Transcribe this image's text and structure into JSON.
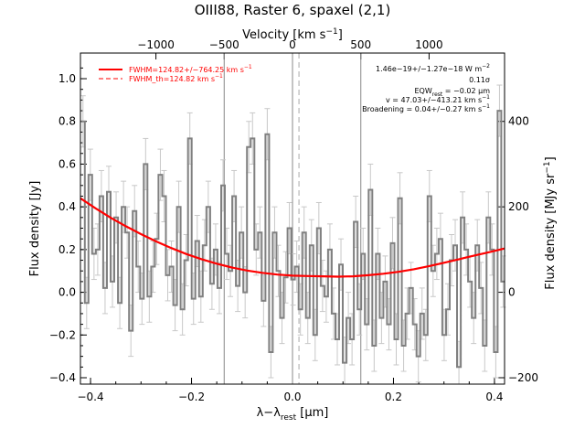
{
  "chart_data": {
    "type": "line",
    "title": "OIII88, Raster 6, spaxel (2,1)",
    "xlabel": "λ−λ",
    "xlabel_sub": "rest",
    "xlabel_unit": " [μm]",
    "ylabel": "Flux density [Jy]",
    "top_axis_label": "Velocity [km s",
    "top_axis_label_sup": "−1",
    "top_axis_label_end": "]",
    "right_axis_label": "Flux density [MJy sr",
    "right_axis_label_sup": "−1",
    "right_axis_label_end": "]",
    "xlim": [
      -0.42,
      0.42
    ],
    "ylim": [
      -0.43,
      1.12
    ],
    "x_ticks": [
      -0.4,
      -0.2,
      0.0,
      0.2,
      0.4
    ],
    "x_tick_labels": [
      "−0.4",
      "−0.2",
      "0.0",
      "0.2",
      "0.4"
    ],
    "y_ticks": [
      -0.4,
      -0.2,
      0.0,
      0.2,
      0.4,
      0.6,
      0.8,
      1.0
    ],
    "y_tick_labels": [
      "−0.4",
      "−0.2",
      "0.0",
      "0.2",
      "0.4",
      "0.6",
      "0.8",
      "1.0"
    ],
    "top_ticks_x": [
      -0.2705,
      -0.1353,
      0.0,
      0.1353,
      0.2705
    ],
    "top_tick_labels": [
      "−1000",
      "−500",
      "0",
      "500",
      "1000"
    ],
    "right_ticks_y": [
      -0.4,
      0.0,
      0.4,
      0.8
    ],
    "right_tick_labels": [
      "−200",
      "0",
      "200",
      "400"
    ],
    "vertical_lines_solid": [
      -0.1353,
      0.0,
      0.1353
    ],
    "vertical_line_dashed": 0.0128,
    "legend": {
      "placement": "top-left",
      "entries": [
        {
          "label": "FWHM=124.82+/−764.25 km s",
          "sup": "−1",
          "style": "solid",
          "color": "#ff0000"
        },
        {
          "label": "FWHM_th=124.82 km s",
          "sup": "−1",
          "style": "dashed",
          "color": "#ff0000"
        }
      ]
    },
    "annotations": [
      {
        "text": "1.46e−19+/−1.27e−18 W m",
        "sup": "−2"
      },
      {
        "text": "0.11σ"
      },
      {
        "text": "EQW",
        "sub": "rest",
        "text2": " = −0.02 μm"
      },
      {
        "text": "v = 47.03+/−413.21 km s",
        "sup": "−1"
      },
      {
        "text": "Broadening = 0.04+/−0.27 km s",
        "sup": "−1"
      }
    ],
    "series": [
      {
        "name": "spectrum",
        "style": "steps",
        "color": "#808080",
        "x": [
          -0.415,
          -0.4077,
          -0.4004,
          -0.3931,
          -0.3858,
          -0.3785,
          -0.3712,
          -0.3639,
          -0.3566,
          -0.3493,
          -0.342,
          -0.3347,
          -0.3274,
          -0.3201,
          -0.3128,
          -0.3055,
          -0.2982,
          -0.2909,
          -0.2836,
          -0.2763,
          -0.269,
          -0.2617,
          -0.2544,
          -0.2471,
          -0.2398,
          -0.2325,
          -0.2252,
          -0.2179,
          -0.2106,
          -0.2033,
          -0.196,
          -0.1887,
          -0.1814,
          -0.1741,
          -0.1668,
          -0.1595,
          -0.1522,
          -0.1449,
          -0.1376,
          -0.1303,
          -0.123,
          -0.1157,
          -0.1084,
          -0.1011,
          -0.0938,
          -0.0865,
          -0.0792,
          -0.0719,
          -0.0646,
          -0.0573,
          -0.05,
          -0.0427,
          -0.0354,
          -0.0281,
          -0.0208,
          -0.0135,
          -0.0062,
          0.0011,
          0.0084,
          0.0157,
          0.023,
          0.0303,
          0.0376,
          0.0449,
          0.0522,
          0.0595,
          0.0668,
          0.0741,
          0.0814,
          0.0887,
          0.096,
          0.1033,
          0.1106,
          0.1179,
          0.1252,
          0.1325,
          0.1398,
          0.1471,
          0.1544,
          0.1617,
          0.169,
          0.1763,
          0.1836,
          0.1909,
          0.1982,
          0.2055,
          0.2128,
          0.2201,
          0.2274,
          0.2347,
          0.242,
          0.2493,
          0.2566,
          0.2639,
          0.2712,
          0.2785,
          0.2858,
          0.2931,
          0.3004,
          0.3077,
          0.315,
          0.3223,
          0.3296,
          0.3369,
          0.3442,
          0.3515,
          0.3588,
          0.3661,
          0.3734,
          0.3807,
          0.388,
          0.3953,
          0.4026,
          0.4099,
          0.4172
        ],
        "y": [
          0.8,
          -0.05,
          0.55,
          0.18,
          0.2,
          0.45,
          0.02,
          0.47,
          0.05,
          0.35,
          -0.05,
          0.4,
          0.28,
          -0.18,
          0.38,
          0.12,
          -0.03,
          0.6,
          -0.02,
          0.12,
          0.25,
          0.55,
          0.45,
          0.08,
          0.12,
          -0.06,
          0.4,
          -0.08,
          0.15,
          0.72,
          -0.03,
          0.24,
          -0.02,
          0.22,
          0.4,
          0.04,
          0.2,
          0.02,
          0.5,
          0.18,
          0.1,
          0.45,
          0.03,
          0.28,
          0.0,
          0.68,
          0.72,
          0.2,
          0.28,
          -0.04,
          0.74,
          -0.28,
          0.28,
          0.1,
          -0.12,
          0.07,
          0.3,
          0.06,
          0.12,
          -0.08,
          0.28,
          -0.12,
          0.22,
          -0.2,
          0.3,
          0.03,
          -0.02,
          0.2,
          -0.1,
          -0.22,
          0.13,
          -0.33,
          -0.12,
          -0.22,
          0.33,
          -0.08,
          0.18,
          -0.15,
          0.48,
          -0.25,
          0.18,
          -0.12,
          0.05,
          -0.15,
          0.23,
          -0.22,
          0.44,
          -0.25,
          -0.1,
          0.02,
          -0.15,
          -0.3,
          -0.1,
          -0.2,
          0.45,
          0.1,
          0.18,
          0.25,
          -0.2,
          -0.08,
          0.15,
          0.22,
          -0.35,
          0.35,
          0.2,
          0.05,
          -0.12,
          0.22,
          0.02,
          -0.25,
          0.35,
          0.2,
          -0.28,
          0.85,
          0.05
        ],
        "err": 0.12
      },
      {
        "name": "fit",
        "style": "line",
        "color": "#ff0000",
        "x": [
          -0.42,
          -0.39,
          -0.36,
          -0.33,
          -0.3,
          -0.27,
          -0.24,
          -0.21,
          -0.18,
          -0.15,
          -0.12,
          -0.09,
          -0.06,
          -0.03,
          0.0,
          0.03,
          0.06,
          0.09,
          0.12,
          0.15,
          0.18,
          0.21,
          0.24,
          0.27,
          0.3,
          0.33,
          0.36,
          0.39,
          0.42
        ],
        "y": [
          0.44,
          0.393,
          0.349,
          0.309,
          0.272,
          0.238,
          0.207,
          0.179,
          0.155,
          0.134,
          0.116,
          0.102,
          0.091,
          0.083,
          0.078,
          0.076,
          0.075,
          0.073,
          0.075,
          0.08,
          0.087,
          0.096,
          0.108,
          0.122,
          0.138,
          0.155,
          0.172,
          0.188,
          0.205
        ]
      }
    ]
  }
}
